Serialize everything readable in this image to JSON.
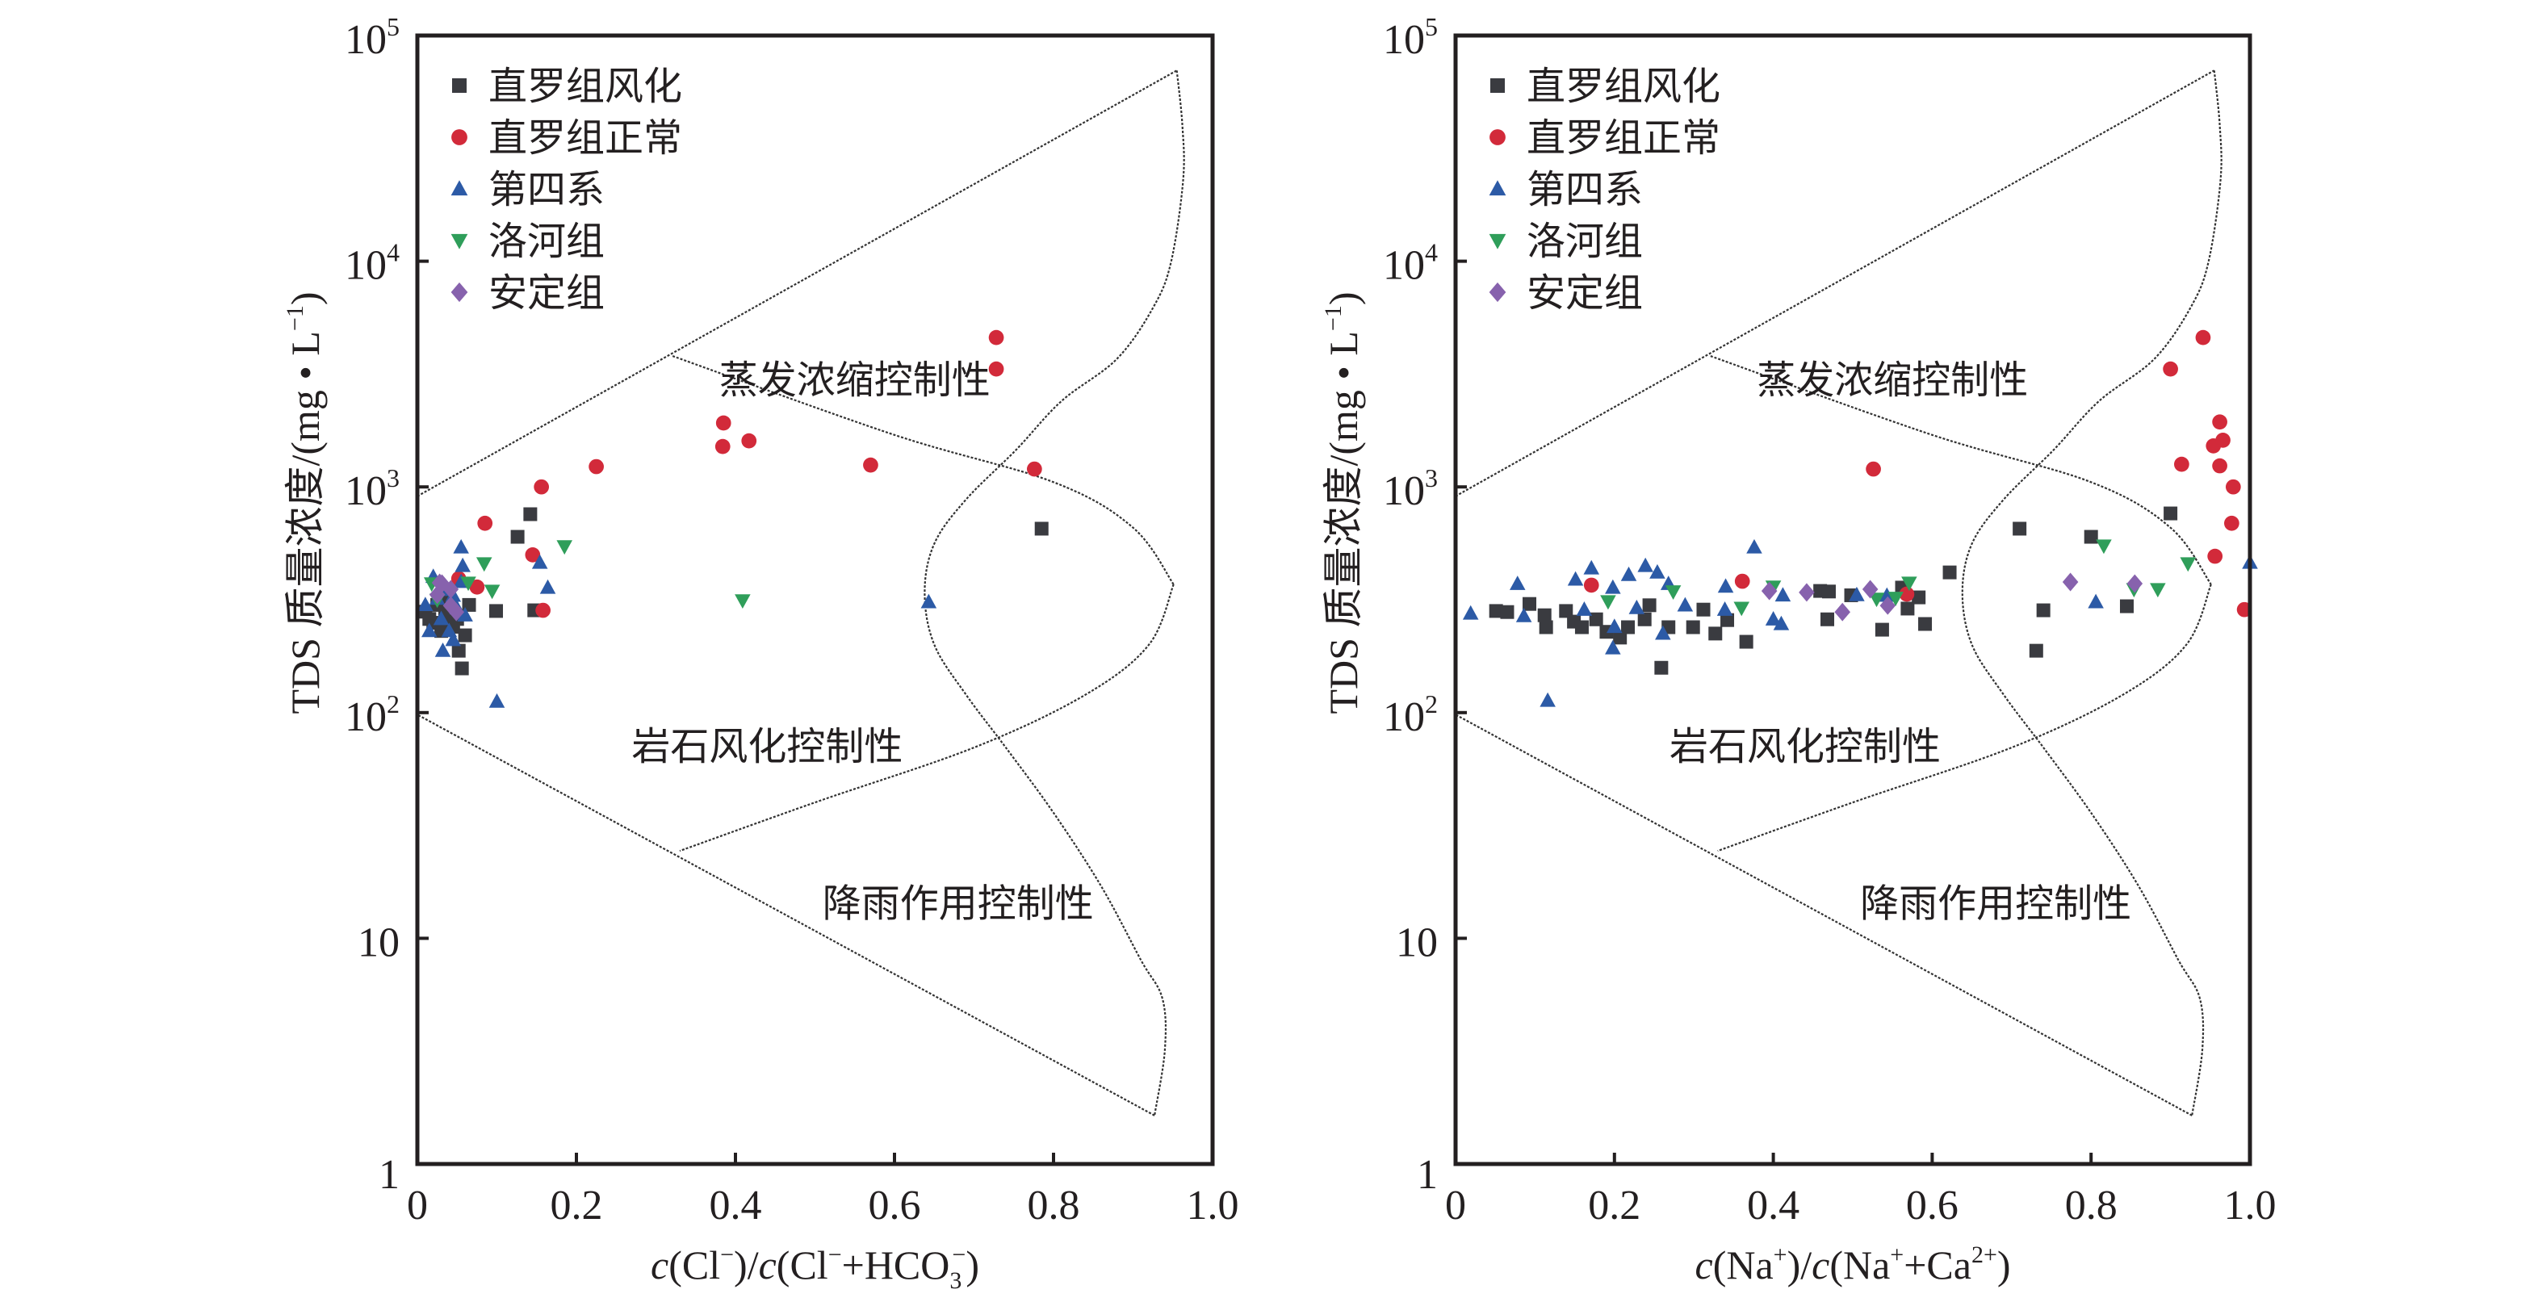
{
  "legend": [
    {
      "key": "zhiluo_weathered",
      "label": "直罗组风化",
      "marker": "square",
      "color": "#3a3b40"
    },
    {
      "key": "zhiluo_normal",
      "label": "直罗组正常",
      "marker": "circle",
      "color": "#d22a3a"
    },
    {
      "key": "quaternary",
      "label": "第四系",
      "marker": "triangle-up",
      "color": "#2c5aa6"
    },
    {
      "key": "luohe",
      "label": "洛河组",
      "marker": "triangle-down",
      "color": "#2f9e5a"
    },
    {
      "key": "anding",
      "label": "安定组",
      "marker": "diamond",
      "color": "#8762ad"
    }
  ],
  "chart_data": [
    {
      "type": "scatter",
      "title": "",
      "xlabel": "c(Cl⁻)/c(Cl⁻+HCO₃⁻)",
      "xlabel_parts": {
        "c1": "c",
        "p1": "(Cl",
        "sup1": "−",
        "p2": ")/",
        "c2": "c",
        "p3": "(Cl",
        "sup2": "−",
        "p4": "+HCO",
        "sub": "3",
        "sup3": "−",
        "p5": ")"
      },
      "ylabel": "TDS 质量浓度/(mg • L⁻¹)",
      "ylabel_parts": {
        "main": "TDS 质量浓度/(mg • L",
        "sup": "−1",
        "end": ")"
      },
      "xlim": [
        0,
        1.0
      ],
      "ylim": [
        1,
        100000
      ],
      "yscale": "log",
      "xticks": [
        "0",
        "0.2",
        "0.4",
        "0.6",
        "0.8",
        "1.0"
      ],
      "yticks": [
        {
          "base": "1",
          "exp": ""
        },
        {
          "base": "10",
          "exp": ""
        },
        {
          "base": "10",
          "exp": "2"
        },
        {
          "base": "10",
          "exp": "3"
        },
        {
          "base": "10",
          "exp": "4"
        },
        {
          "base": "10",
          "exp": "5"
        }
      ],
      "region_labels": {
        "evaporation": "蒸发浓缩控制性",
        "rock": "岩石风化控制性",
        "precipitation": "降雨作用控制性"
      },
      "legend_position": "top-left",
      "series": [
        {
          "name": "直罗组风化",
          "key": "zhiluo_weathered",
          "points": [
            [
              0.142,
              757
            ],
            [
              0.126,
              601
            ],
            [
              0.785,
              653
            ],
            [
              0.099,
              282
            ],
            [
              0.147,
              284
            ],
            [
              0.052,
              188
            ],
            [
              0.056,
              157
            ],
            [
              0.01,
              280
            ],
            [
              0.02,
              250
            ],
            [
              0.03,
              230
            ],
            [
              0.04,
              310
            ],
            [
              0.05,
              260
            ],
            [
              0.06,
              220
            ],
            [
              0.035,
              270
            ],
            [
              0.025,
              300
            ],
            [
              0.045,
              240
            ],
            [
              0.065,
              300
            ],
            [
              0.015,
              260
            ]
          ]
        },
        {
          "name": "直罗组正常",
          "key": "zhiluo_normal",
          "points": [
            [
              0.728,
              4590
            ],
            [
              0.728,
              3330
            ],
            [
              0.385,
              1920
            ],
            [
              0.384,
              1510
            ],
            [
              0.417,
              1600
            ],
            [
              0.225,
              1230
            ],
            [
              0.57,
              1250
            ],
            [
              0.776,
              1200
            ],
            [
              0.156,
              1000
            ],
            [
              0.085,
              690
            ],
            [
              0.145,
              500
            ],
            [
              0.075,
              360
            ],
            [
              0.158,
              284
            ],
            [
              0.052,
              392
            ]
          ]
        },
        {
          "name": "第四系",
          "key": "quaternary",
          "points": [
            [
              0.055,
              540
            ],
            [
              0.057,
              447
            ],
            [
              0.154,
              462
            ],
            [
              0.164,
              358
            ],
            [
              0.643,
              309
            ],
            [
              0.1,
              112
            ],
            [
              0.032,
              188
            ],
            [
              0.02,
              400
            ],
            [
              0.035,
              350
            ],
            [
              0.045,
              330
            ],
            [
              0.05,
              290
            ],
            [
              0.06,
              270
            ],
            [
              0.01,
              300
            ],
            [
              0.03,
              260
            ],
            [
              0.04,
              230
            ],
            [
              0.025,
              320
            ],
            [
              0.055,
              380
            ],
            [
              0.015,
              230
            ],
            [
              0.045,
              210
            ]
          ]
        },
        {
          "name": "洛河组",
          "key": "luohe",
          "points": [
            [
              0.185,
              545
            ],
            [
              0.084,
              458
            ],
            [
              0.094,
              346
            ],
            [
              0.409,
              314
            ],
            [
              0.018,
              373
            ],
            [
              0.025,
              316
            ],
            [
              0.064,
              376
            ]
          ]
        },
        {
          "name": "安定组",
          "key": "anding",
          "points": [
            [
              0.031,
              373
            ],
            [
              0.042,
              352
            ],
            [
              0.025,
              333
            ],
            [
              0.042,
              298
            ],
            [
              0.049,
              279
            ],
            [
              0.028,
              376
            ]
          ]
        }
      ]
    },
    {
      "type": "scatter",
      "title": "",
      "xlabel": "c(Na⁺)/c(Na⁺+Ca²⁺)",
      "xlabel_parts": {
        "c1": "c",
        "p1": "(Na",
        "sup1": "+",
        "p2": ")/",
        "c2": "c",
        "p3": "(Na",
        "sup2": "+",
        "p4": "+Ca",
        "sub": "",
        "sup3": "2+",
        "p5": ")"
      },
      "ylabel": "TDS 质量浓度/(mg • L⁻¹)",
      "ylabel_parts": {
        "main": "TDS 质量浓度/(mg • L",
        "sup": "−1",
        "end": ")"
      },
      "xlim": [
        0,
        1.0
      ],
      "ylim": [
        1,
        100000
      ],
      "yscale": "log",
      "xticks": [
        "0",
        "0.2",
        "0.4",
        "0.6",
        "0.8",
        "1.0"
      ],
      "yticks": [
        {
          "base": "1",
          "exp": ""
        },
        {
          "base": "10",
          "exp": ""
        },
        {
          "base": "10",
          "exp": "2"
        },
        {
          "base": "10",
          "exp": "3"
        },
        {
          "base": "10",
          "exp": "4"
        },
        {
          "base": "10",
          "exp": "5"
        }
      ],
      "region_labels": {
        "evaporation": "蒸发浓缩控制性",
        "rock": "岩石风化控制性",
        "precipitation": "降雨作用控制性"
      },
      "legend_position": "top-left",
      "series": [
        {
          "name": "直罗组风化",
          "key": "zhiluo_weathered",
          "points": [
            [
              0.051,
              282
            ],
            [
              0.065,
              279
            ],
            [
              0.093,
              303
            ],
            [
              0.112,
              270
            ],
            [
              0.114,
              239
            ],
            [
              0.139,
              282
            ],
            [
              0.149,
              253
            ],
            [
              0.159,
              239
            ],
            [
              0.177,
              259
            ],
            [
              0.19,
              228
            ],
            [
              0.207,
              215
            ],
            [
              0.217,
              239
            ],
            [
              0.238,
              259
            ],
            [
              0.244,
              299
            ],
            [
              0.268,
              239
            ],
            [
              0.299,
              239
            ],
            [
              0.312,
              286
            ],
            [
              0.327,
              224
            ],
            [
              0.342,
              257
            ],
            [
              0.366,
              206
            ],
            [
              0.459,
              346
            ],
            [
              0.468,
              259
            ],
            [
              0.498,
              331
            ],
            [
              0.259,
              158
            ],
            [
              0.47,
              344
            ],
            [
              0.562,
              358
            ],
            [
              0.583,
              324
            ],
            [
              0.569,
              289
            ],
            [
              0.537,
              233
            ],
            [
              0.591,
              247
            ],
            [
              0.622,
              418
            ],
            [
              0.71,
              653
            ],
            [
              0.8,
              601
            ],
            [
              0.9,
              763
            ],
            [
              0.74,
              284
            ],
            [
              0.845,
              296
            ],
            [
              0.731,
              188
            ]
          ]
        },
        {
          "name": "直罗组正常",
          "key": "zhiluo_normal",
          "points": [
            [
              0.941,
              4590
            ],
            [
              0.9,
              3330
            ],
            [
              0.962,
              1940
            ],
            [
              0.966,
              1610
            ],
            [
              0.954,
              1520
            ],
            [
              0.914,
              1260
            ],
            [
              0.962,
              1240
            ],
            [
              0.979,
              1000
            ],
            [
              0.977,
              690
            ],
            [
              0.956,
              493
            ],
            [
              0.993,
              286
            ],
            [
              0.526,
              1200
            ],
            [
              0.171,
              367
            ],
            [
              0.361,
              382
            ],
            [
              0.568,
              335
            ]
          ]
        },
        {
          "name": "第四系",
          "key": "quaternary",
          "points": [
            [
              0.019,
              275
            ],
            [
              0.078,
              372
            ],
            [
              0.086,
              268
            ],
            [
              0.151,
              389
            ],
            [
              0.171,
              436
            ],
            [
              0.218,
              408
            ],
            [
              0.239,
              447
            ],
            [
              0.254,
              418
            ],
            [
              0.268,
              372
            ],
            [
              0.376,
              540
            ],
            [
              0.34,
              362
            ],
            [
              0.198,
              193
            ],
            [
              0.116,
              113
            ],
            [
              0.261,
              224
            ],
            [
              0.289,
              299
            ],
            [
              0.4,
              259
            ],
            [
              0.412,
              331
            ],
            [
              0.41,
              247
            ],
            [
              0.228,
              291
            ],
            [
              0.2,
              240
            ],
            [
              0.162,
              286
            ],
            [
              0.339,
              286
            ],
            [
              0.198,
              358
            ],
            [
              0.505,
              332
            ],
            [
              0.543,
              330
            ],
            [
              0.806,
              309
            ],
            [
              1.0,
              462
            ]
          ]
        },
        {
          "name": "洛河组",
          "key": "luohe",
          "points": [
            [
              0.192,
              311
            ],
            [
              0.274,
              344
            ],
            [
              0.36,
              291
            ],
            [
              0.4,
              361
            ],
            [
              0.53,
              319
            ],
            [
              0.554,
              322
            ],
            [
              0.571,
              376
            ],
            [
              0.816,
              549
            ],
            [
              0.922,
              458
            ],
            [
              0.884,
              352
            ],
            [
              0.854,
              352
            ]
          ]
        },
        {
          "name": "安定组",
          "key": "anding",
          "points": [
            [
              0.395,
              346
            ],
            [
              0.442,
              341
            ],
            [
              0.487,
              279
            ],
            [
              0.522,
              352
            ],
            [
              0.544,
              298
            ],
            [
              0.774,
              379
            ],
            [
              0.855,
              373
            ]
          ]
        }
      ]
    }
  ],
  "gibbs_boundary": {
    "outer_upper_line": [
      [
        0,
        910
      ],
      [
        0.955,
        70000
      ]
    ],
    "outer_curve": [
      [
        0.955,
        70000
      ],
      [
        0.962,
        40000
      ],
      [
        0.963,
        23000
      ],
      [
        0.948,
        10000
      ],
      [
        0.926,
        6300
      ],
      [
        0.88,
        3700
      ],
      [
        0.81,
        2400
      ],
      [
        0.753,
        1460
      ],
      [
        0.69,
        880
      ],
      [
        0.65,
        560
      ],
      [
        0.638,
        340
      ],
      [
        0.65,
        200
      ],
      [
        0.69,
        120
      ],
      [
        0.74,
        70
      ],
      [
        0.8,
        36
      ],
      [
        0.86,
        17
      ],
      [
        0.91,
        8
      ],
      [
        0.937,
        5.4
      ],
      [
        0.94,
        3.2
      ],
      [
        0.927,
        1.64
      ]
    ],
    "outer_lower_line": [
      [
        0.927,
        1.64
      ],
      [
        0,
        98
      ]
    ],
    "inner_upper_line": [
      [
        0.321,
        3800
      ],
      [
        0.6,
        1700
      ],
      [
        0.8,
        1050
      ],
      [
        0.9,
        660
      ],
      [
        0.951,
        370
      ]
    ],
    "inner_lower_line": [
      [
        0.951,
        370
      ],
      [
        0.92,
        200
      ],
      [
        0.84,
        120
      ],
      [
        0.7,
        70
      ],
      [
        0.5,
        40
      ],
      [
        0.33,
        24.4
      ]
    ]
  }
}
